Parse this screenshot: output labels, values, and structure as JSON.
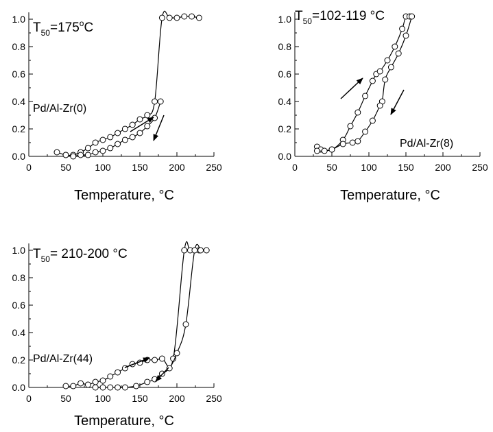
{
  "chart_data": [
    {
      "id": "zr0",
      "type": "line",
      "t50_prefix": "T",
      "t50_sub": "50",
      "t50_value": "=175",
      "t50_sup": "o",
      "t50_unit": "C",
      "sample_label": "Pd/Al-Zr(0)",
      "xlabel": "Temperature, °C",
      "ylabel": "",
      "xlim": [
        0,
        250
      ],
      "ylim": [
        0,
        1.05
      ],
      "x_ticks": [
        "0",
        "50",
        "100",
        "150",
        "200",
        "250"
      ],
      "y_ticks": [
        "0.0",
        "0.2",
        "0.4",
        "0.6",
        "0.8",
        "1.0"
      ],
      "series": [
        {
          "direction": "heating",
          "values": [
            [
              38,
              0.03
            ],
            [
              50,
              0.01
            ],
            [
              60,
              0.01
            ],
            [
              70,
              0.03
            ],
            [
              80,
              0.06
            ],
            [
              90,
              0.1
            ],
            [
              100,
              0.12
            ],
            [
              110,
              0.14
            ],
            [
              120,
              0.17
            ],
            [
              130,
              0.2
            ],
            [
              140,
              0.23
            ],
            [
              150,
              0.27
            ],
            [
              160,
              0.3
            ],
            [
              170,
              0.4
            ],
            [
              180,
              1.01
            ],
            [
              190,
              1.01
            ],
            [
              200,
              1.01
            ],
            [
              210,
              1.02
            ],
            [
              220,
              1.02
            ],
            [
              230,
              1.01
            ]
          ]
        },
        {
          "direction": "cooling",
          "values": [
            [
              178,
              0.4
            ],
            [
              170,
              0.28
            ],
            [
              160,
              0.22
            ],
            [
              150,
              0.17
            ],
            [
              140,
              0.14
            ],
            [
              130,
              0.12
            ],
            [
              120,
              0.09
            ],
            [
              110,
              0.06
            ],
            [
              100,
              0.04
            ],
            [
              90,
              0.03
            ],
            [
              80,
              0.01
            ],
            [
              70,
              0.01
            ],
            [
              60,
              0.0
            ],
            [
              50,
              0.01
            ]
          ]
        }
      ]
    },
    {
      "id": "zr8",
      "type": "line",
      "t50_prefix": "T",
      "t50_sub": "50",
      "t50_value": "=102-119 °C",
      "t50_sup": "",
      "t50_unit": "",
      "sample_label": "Pd/Al-Zr(8)",
      "xlabel": "Temperature, °C",
      "ylabel": "",
      "xlim": [
        0,
        250
      ],
      "ylim": [
        0,
        1.05
      ],
      "x_ticks": [
        "0",
        "50",
        "100",
        "150",
        "200",
        "250"
      ],
      "y_ticks": [
        "0.0",
        "0.2",
        "0.4",
        "0.6",
        "0.8",
        "1.0"
      ],
      "series": [
        {
          "direction": "heating",
          "values": [
            [
              30,
              0.07
            ],
            [
              35,
              0.05
            ],
            [
              50,
              0.05
            ],
            [
              65,
              0.12
            ],
            [
              75,
              0.22
            ],
            [
              85,
              0.32
            ],
            [
              95,
              0.44
            ],
            [
              105,
              0.55
            ],
            [
              110,
              0.6
            ],
            [
              115,
              0.62
            ],
            [
              125,
              0.7
            ],
            [
              135,
              0.8
            ],
            [
              145,
              0.93
            ],
            [
              150,
              1.02
            ],
            [
              155,
              1.02
            ]
          ]
        },
        {
          "direction": "cooling",
          "values": [
            [
              158,
              1.02
            ],
            [
              150,
              0.88
            ],
            [
              140,
              0.75
            ],
            [
              130,
              0.65
            ],
            [
              122,
              0.56
            ],
            [
              118,
              0.4
            ],
            [
              115,
              0.37
            ],
            [
              105,
              0.26
            ],
            [
              95,
              0.18
            ],
            [
              85,
              0.11
            ],
            [
              78,
              0.1
            ],
            [
              65,
              0.09
            ],
            [
              50,
              0.05
            ],
            [
              40,
              0.04
            ],
            [
              30,
              0.04
            ]
          ]
        }
      ]
    },
    {
      "id": "zr44",
      "type": "line",
      "t50_prefix": "T",
      "t50_sub": "50",
      "t50_value": "= 210-200 °C",
      "t50_sup": "",
      "t50_unit": "",
      "sample_label": "Pd/Al-Zr(44)",
      "xlabel": "Temperature, °C",
      "ylabel": "",
      "xlim": [
        0,
        250
      ],
      "ylim": [
        0,
        1.05
      ],
      "x_ticks": [
        "0",
        "50",
        "100",
        "150",
        "200",
        "250"
      ],
      "y_ticks": [
        "0.0",
        "0.2",
        "0.4",
        "0.6",
        "0.8",
        "1.0"
      ],
      "series": [
        {
          "direction": "heating",
          "values": [
            [
              50,
              0.01
            ],
            [
              60,
              0.01
            ],
            [
              70,
              0.03
            ],
            [
              80,
              0.02
            ],
            [
              90,
              0.04
            ],
            [
              100,
              0.05
            ],
            [
              110,
              0.08
            ],
            [
              120,
              0.11
            ],
            [
              130,
              0.14
            ],
            [
              140,
              0.17
            ],
            [
              150,
              0.18
            ],
            [
              160,
              0.2
            ],
            [
              170,
              0.2
            ],
            [
              180,
              0.21
            ],
            [
              195,
              0.21
            ],
            [
              210,
              1.0
            ],
            [
              218,
              1.0
            ],
            [
              230,
              1.0
            ],
            [
              240,
              1.0
            ]
          ]
        },
        {
          "direction": "cooling",
          "values": [
            [
              232,
              1.0
            ],
            [
              224,
              1.0
            ],
            [
              212,
              0.46
            ],
            [
              200,
              0.25
            ],
            [
              190,
              0.14
            ],
            [
              180,
              0.1
            ],
            [
              170,
              0.06
            ],
            [
              160,
              0.04
            ],
            [
              145,
              0.01
            ],
            [
              130,
              0.0
            ],
            [
              120,
              0.0
            ],
            [
              110,
              0.0
            ],
            [
              100,
              0.0
            ],
            [
              90,
              0.0
            ]
          ]
        }
      ]
    }
  ]
}
